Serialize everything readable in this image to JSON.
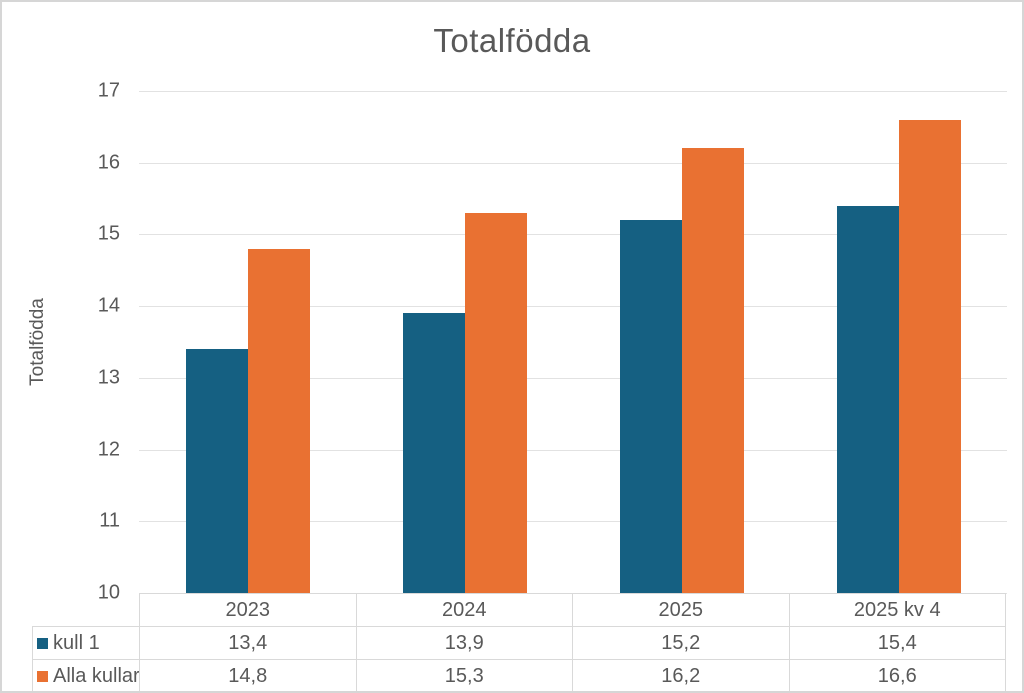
{
  "chart_data": {
    "type": "bar",
    "title": "Totalfödda",
    "ylabel": "Totalfödda",
    "xlabel": "",
    "categories": [
      "2023",
      "2024",
      "2025",
      "2025 kv 4"
    ],
    "series": [
      {
        "name": "kull 1",
        "color": "#156082",
        "values": [
          13.4,
          13.9,
          15.2,
          15.4
        ]
      },
      {
        "name": "Alla kullar",
        "color": "#E97132",
        "values": [
          14.8,
          15.3,
          16.2,
          16.6
        ]
      }
    ],
    "display_values": [
      [
        "13,4",
        "13,9",
        "15,2",
        "15,4"
      ],
      [
        "14,8",
        "15,3",
        "16,2",
        "16,6"
      ]
    ],
    "ylim": [
      10,
      17
    ],
    "yticks": [
      10,
      11,
      12,
      13,
      14,
      15,
      16,
      17
    ],
    "grid": true,
    "legend_position": "table-left",
    "colors": {
      "series1": "#156082",
      "series2": "#E97132",
      "text": "#595959",
      "gridline": "#E2E2E2",
      "table_border": "#D9D9D9",
      "frame_border": "#D6D6D6",
      "background": "#FFFFFF"
    }
  }
}
